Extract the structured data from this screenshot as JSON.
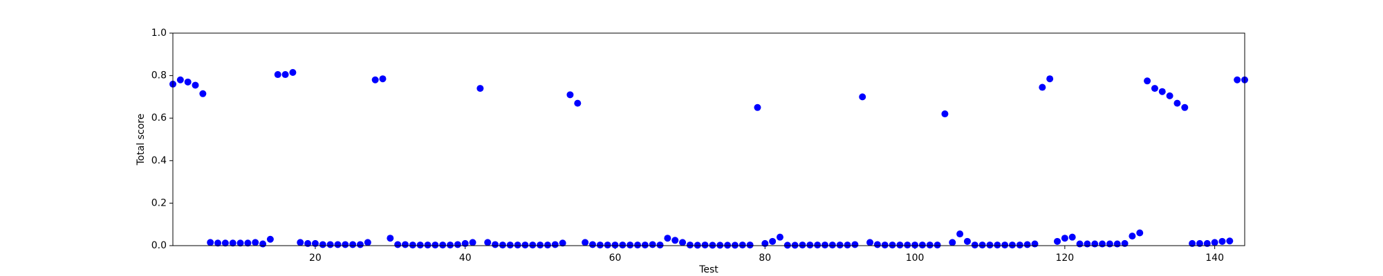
{
  "chart_data": {
    "type": "scatter",
    "xlabel": "Test",
    "ylabel": "Total score",
    "color": "#0000ff",
    "x": [
      1,
      2,
      3,
      4,
      5,
      6,
      7,
      8,
      9,
      10,
      11,
      12,
      13,
      14,
      15,
      16,
      17,
      18,
      19,
      20,
      21,
      22,
      23,
      24,
      25,
      26,
      27,
      28,
      29,
      30,
      31,
      32,
      33,
      34,
      35,
      36,
      37,
      38,
      39,
      40,
      41,
      42,
      43,
      44,
      45,
      46,
      47,
      48,
      49,
      50,
      51,
      52,
      53,
      54,
      55,
      56,
      57,
      58,
      59,
      60,
      61,
      62,
      63,
      64,
      65,
      66,
      67,
      68,
      69,
      70,
      71,
      72,
      73,
      74,
      75,
      76,
      77,
      78,
      79,
      80,
      81,
      82,
      83,
      84,
      85,
      86,
      87,
      88,
      89,
      90,
      91,
      92,
      93,
      94,
      95,
      96,
      97,
      98,
      99,
      100,
      101,
      102,
      103,
      104,
      105,
      106,
      107,
      108,
      109,
      110,
      111,
      112,
      113,
      114,
      115,
      116,
      117,
      118,
      119,
      120,
      121,
      122,
      123,
      124,
      125,
      126,
      127,
      128,
      129,
      130,
      131,
      132,
      133,
      134,
      135,
      136,
      137,
      138,
      139,
      140,
      141,
      142,
      143,
      144
    ],
    "values": [
      0.76,
      0.78,
      0.77,
      0.755,
      0.715,
      0.015,
      0.012,
      0.012,
      0.012,
      0.012,
      0.012,
      0.015,
      0.008,
      0.03,
      0.805,
      0.805,
      0.815,
      0.015,
      0.01,
      0.01,
      0.005,
      0.005,
      0.005,
      0.005,
      0.005,
      0.005,
      0.015,
      0.78,
      0.785,
      0.035,
      0.005,
      0.005,
      0.003,
      0.003,
      0.003,
      0.003,
      0.003,
      0.003,
      0.005,
      0.01,
      0.015,
      0.74,
      0.015,
      0.005,
      0.003,
      0.003,
      0.003,
      0.003,
      0.003,
      0.003,
      0.003,
      0.005,
      0.012,
      0.71,
      0.67,
      0.015,
      0.005,
      0.003,
      0.003,
      0.003,
      0.003,
      0.003,
      0.003,
      0.003,
      0.005,
      0.003,
      0.035,
      0.025,
      0.015,
      0.003,
      0.002,
      0.003,
      0.002,
      0.002,
      0.002,
      0.002,
      0.003,
      0.003,
      0.65,
      0.01,
      0.02,
      0.04,
      0.002,
      0.002,
      0.003,
      0.003,
      0.003,
      0.003,
      0.003,
      0.003,
      0.003,
      0.005,
      0.7,
      0.015,
      0.005,
      0.003,
      0.003,
      0.003,
      0.003,
      0.003,
      0.003,
      0.003,
      0.003,
      0.62,
      0.015,
      0.055,
      0.02,
      0.003,
      0.003,
      0.003,
      0.003,
      0.003,
      0.003,
      0.003,
      0.005,
      0.008,
      0.745,
      0.785,
      0.02,
      0.035,
      0.04,
      0.008,
      0.008,
      0.008,
      0.008,
      0.008,
      0.008,
      0.01,
      0.045,
      0.06,
      0.775,
      0.74,
      0.725,
      0.705,
      0.67,
      0.65,
      0.01,
      0.01,
      0.01,
      0.015,
      0.02,
      0.022,
      0.78,
      0.78
    ],
    "xlim": [
      1,
      144
    ],
    "xticks": [
      20,
      40,
      60,
      80,
      100,
      120,
      140
    ],
    "ylim": [
      0,
      1
    ],
    "yticks": [
      {
        "value": 0,
        "label": "0.0"
      },
      {
        "value": 0.2,
        "label": "0.2"
      },
      {
        "value": 0.4,
        "label": "0.4"
      },
      {
        "value": 0.6,
        "label": "0.6"
      },
      {
        "value": 0.8,
        "label": "0.8"
      },
      {
        "value": 1,
        "label": "1.0"
      }
    ]
  }
}
